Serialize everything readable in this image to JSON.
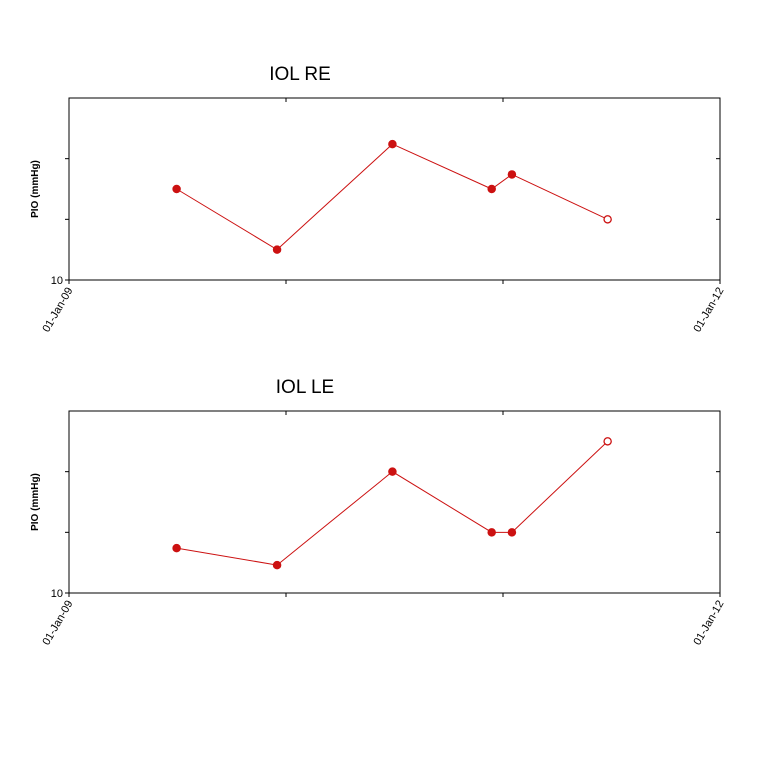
{
  "chart_data": [
    {
      "type": "line",
      "title": "IOL RE",
      "y_label": "PIO (mmHg)",
      "x": [
        "2009-07-01",
        "2009-12-17",
        "2010-06-29",
        "2010-12-13",
        "2011-01-16",
        "2011-06-26"
      ],
      "series": [
        {
          "name": "IOL RE",
          "color": "#cc1111",
          "values": [
            17.5,
            12.5,
            21.2,
            17.5,
            18.7,
            15
          ],
          "open_points": [
            5
          ]
        }
      ],
      "xlim": [
        "2009-01-01",
        "2012-01-01"
      ],
      "xticks": [
        {
          "value": "2009-01-01",
          "label": "01-Jan-09"
        },
        {
          "value": "2010-01-01",
          "label": null
        },
        {
          "value": "2011-01-01",
          "label": null
        },
        {
          "value": "2012-01-01",
          "label": "01-Jan-12"
        }
      ],
      "ylim": [
        10,
        25
      ],
      "yticks": [
        10,
        {
          "value": 15,
          "label": null
        },
        {
          "value": 20,
          "label": null
        }
      ]
    },
    {
      "type": "line",
      "title": "IOL LE",
      "y_label": "PIO (mmHg)",
      "x": [
        "2009-07-01",
        "2009-12-17",
        "2010-06-29",
        "2010-12-13",
        "2011-01-16",
        "2011-06-26"
      ],
      "series": [
        {
          "name": "IOL LE",
          "color": "#cc1111",
          "values": [
            13.7,
            12.3,
            20,
            15,
            15,
            22.5
          ],
          "open_points": [
            5
          ]
        }
      ],
      "xlim": [
        "2009-01-01",
        "2012-01-01"
      ],
      "xticks": [
        {
          "value": "2009-01-01",
          "label": "01-Jan-09"
        },
        {
          "value": "2010-01-01",
          "label": null
        },
        {
          "value": "2011-01-01",
          "label": null
        },
        {
          "value": "2012-01-01",
          "label": "01-Jan-12"
        }
      ],
      "ylim": [
        10,
        25
      ],
      "yticks": [
        10,
        {
          "value": 15,
          "label": null
        },
        {
          "value": 20,
          "label": null
        }
      ]
    }
  ]
}
